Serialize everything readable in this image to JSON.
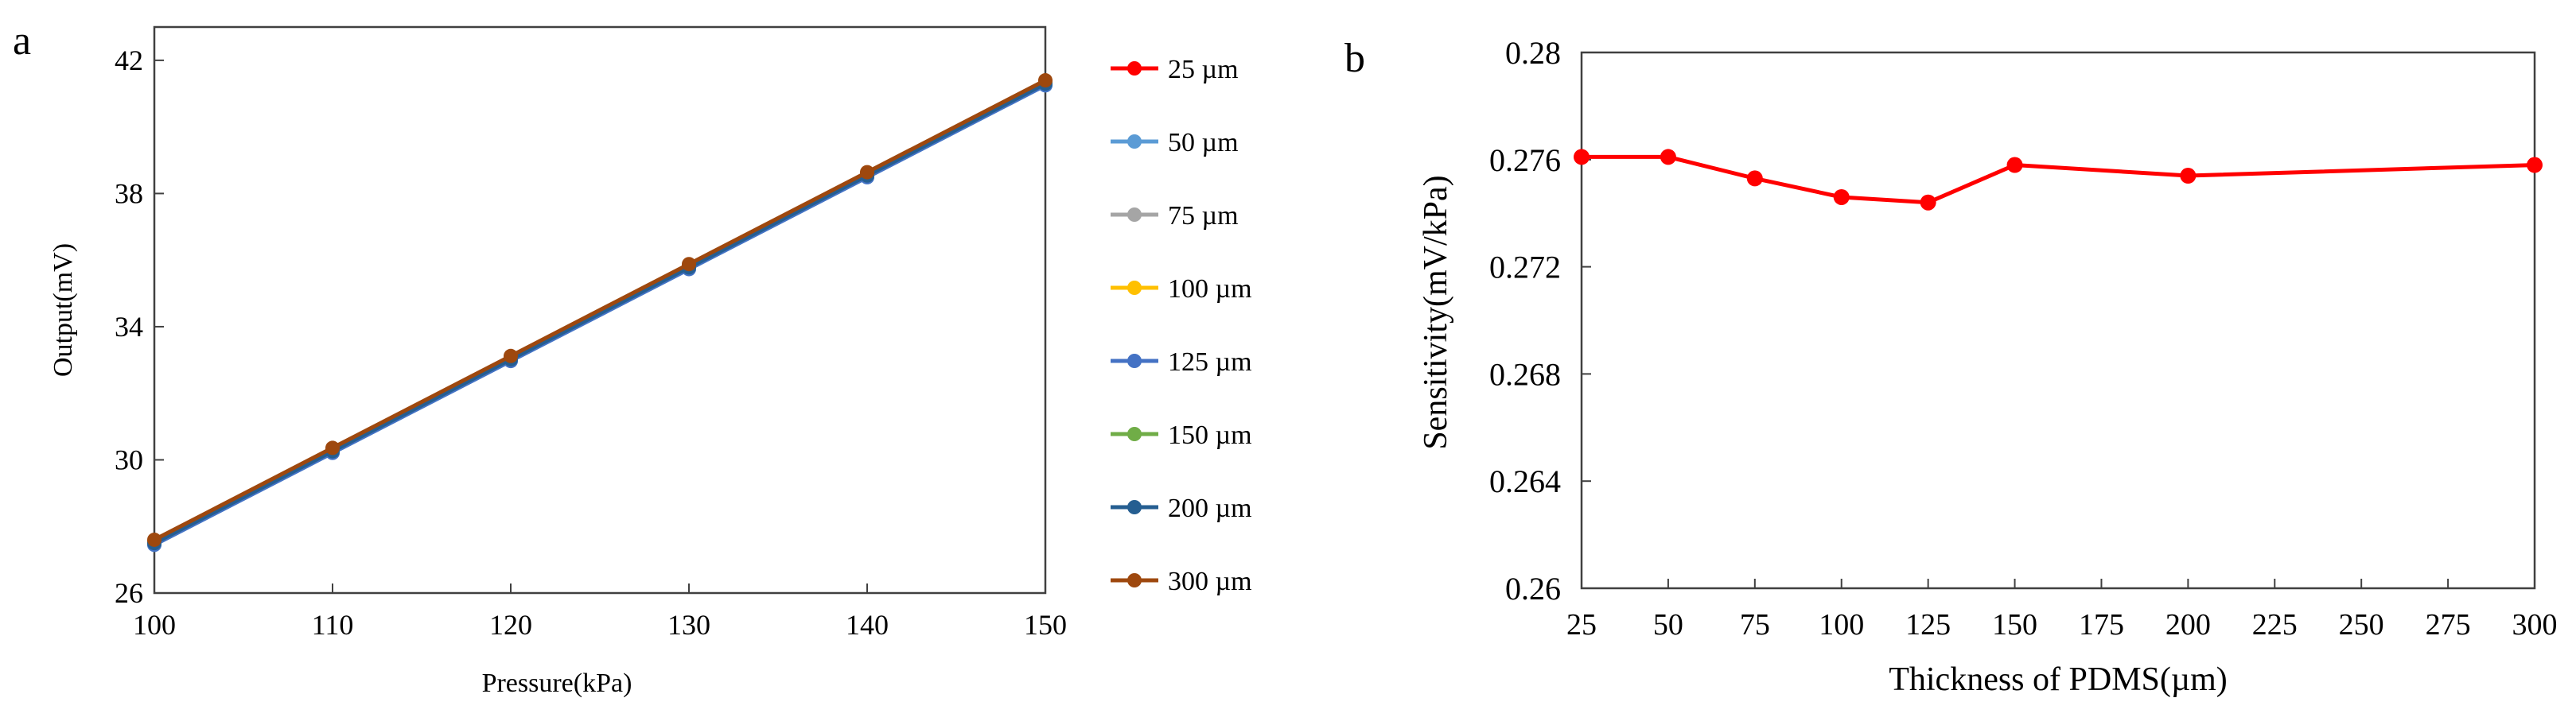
{
  "panel_labels": {
    "a": "a",
    "b": "b"
  },
  "chart_data": [
    {
      "id": "a",
      "type": "line",
      "title": "",
      "xlabel": "Pressure(kPa)",
      "ylabel": "Output(mV)",
      "x": [
        100,
        110,
        120,
        130,
        140,
        150
      ],
      "xlim": [
        100,
        150
      ],
      "ylim": [
        26,
        43
      ],
      "xticks": [
        "100",
        "110",
        "120",
        "130",
        "140",
        "150"
      ],
      "yticks": [
        {
          "v": 26,
          "label": "26"
        },
        {
          "v": 30,
          "label": "30"
        },
        {
          "v": 34,
          "label": "34"
        },
        {
          "v": 38,
          "label": "38"
        },
        {
          "v": 42,
          "label": "42"
        }
      ],
      "grid": false,
      "legend_position": "right",
      "series": [
        {
          "name": "25 µm",
          "color": "#ff0000",
          "values": [
            27.55,
            30.31,
            33.07,
            35.83,
            38.59,
            41.35
          ]
        },
        {
          "name": "50 µm",
          "color": "#5b9bd5",
          "values": [
            27.45,
            30.21,
            32.97,
            35.73,
            38.49,
            41.25
          ]
        },
        {
          "name": "75 µm",
          "color": "#a5a5a5",
          "values": [
            27.5,
            30.26,
            33.02,
            35.78,
            38.54,
            41.3
          ]
        },
        {
          "name": "100 µm",
          "color": "#ffc000",
          "values": [
            27.5,
            30.26,
            33.02,
            35.78,
            38.54,
            41.3
          ]
        },
        {
          "name": "125 µm",
          "color": "#4472c4",
          "values": [
            27.45,
            30.21,
            32.97,
            35.73,
            38.49,
            41.25
          ]
        },
        {
          "name": "150 µm",
          "color": "#70ad47",
          "values": [
            27.52,
            30.28,
            33.04,
            35.8,
            38.56,
            41.32
          ]
        },
        {
          "name": "200 µm",
          "color": "#255e91",
          "values": [
            27.5,
            30.26,
            33.02,
            35.78,
            38.54,
            41.3
          ]
        },
        {
          "name": "300 µm",
          "color": "#9e480e",
          "values": [
            27.6,
            30.36,
            33.12,
            35.88,
            38.64,
            41.4
          ]
        }
      ]
    },
    {
      "id": "b",
      "type": "line",
      "title": "",
      "xlabel": "Thickness of PDMS(µm)",
      "ylabel": "Sensitivity(mV/kPa)",
      "xlim": [
        25,
        300
      ],
      "ylim": [
        0.26,
        0.28
      ],
      "xticks": [
        "25",
        "50",
        "75",
        "100",
        "125",
        "150",
        "175",
        "200",
        "225",
        "250",
        "275",
        "300"
      ],
      "yticks": [
        {
          "v": 0.26,
          "label": "0.26"
        },
        {
          "v": 0.264,
          "label": "0.264"
        },
        {
          "v": 0.268,
          "label": "0.268"
        },
        {
          "v": 0.272,
          "label": "0.272"
        },
        {
          "v": 0.276,
          "label": "0.276"
        },
        {
          "v": 0.28,
          "label": "0.28"
        }
      ],
      "grid": false,
      "legend_position": "none",
      "series": [
        {
          "name": "Sensitivity",
          "color": "#ff0000",
          "x": [
            25,
            50,
            75,
            100,
            125,
            150,
            200,
            300
          ],
          "values": [
            0.2761,
            0.2761,
            0.2753,
            0.2746,
            0.2744,
            0.2758,
            0.2754,
            0.2758
          ]
        }
      ]
    }
  ]
}
